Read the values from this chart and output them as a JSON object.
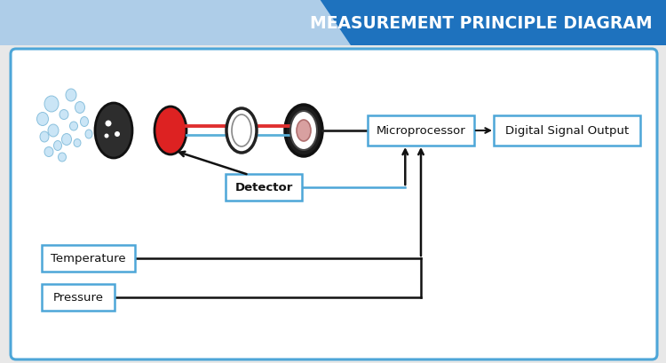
{
  "title": "MEASUREMENT PRINCIPLE DIAGRAM",
  "title_bg_dark": "#1e72be",
  "title_bg_light": "#aecde8",
  "title_text_color": "#ffffff",
  "border_color": "#4da6d8",
  "box_border": "#4da6d8",
  "box_text_color": "#111111",
  "arrow_color": "#111111",
  "red_line": "#e03030",
  "blue_line": "#5ab0d8",
  "bubble_color": "#c5e3f5",
  "bubble_ec": "#80bbda",
  "labels": {
    "detector": "Detector",
    "microprocessor": "Microprocessor",
    "digital_output": "Digital Signal Output",
    "temperature": "Temperature",
    "pressure": "Pressure"
  },
  "fig_w": 7.5,
  "fig_h": 4.1,
  "dpi": 100
}
